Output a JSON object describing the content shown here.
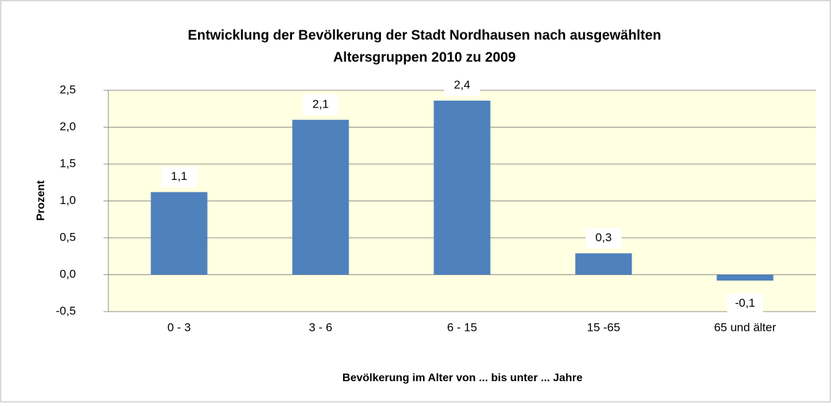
{
  "chart_data": {
    "type": "bar",
    "title": [
      "Entwicklung der Bevölkerung der Stadt Nordhausen nach ausgewählten",
      "Altersgruppen 2010 zu 2009"
    ],
    "xlabel": "Bevölkerung im Alter von ... bis unter ... Jahre",
    "ylabel": "Prozent",
    "categories": [
      "0 - 3",
      "3 - 6",
      "6 - 15",
      "15 -65",
      "65 und älter"
    ],
    "values": [
      1.12,
      2.1,
      2.36,
      0.29,
      -0.08
    ],
    "value_labels": [
      "1,1",
      "2,1",
      "2,4",
      "0,3",
      "-0,1"
    ],
    "color": "#4f81bd",
    "ylim": [
      -0.5,
      2.5
    ],
    "yticks": [
      {
        "value": -0.5,
        "label": "-0,5"
      },
      {
        "value": 0,
        "label": "0,0"
      },
      {
        "value": 0.5,
        "label": "0,5"
      },
      {
        "value": 1,
        "label": "1,0"
      },
      {
        "value": 1.5,
        "label": "1,5"
      },
      {
        "value": 2,
        "label": "2,0"
      },
      {
        "value": 2.5,
        "label": "2,5"
      }
    ],
    "grid": true
  }
}
